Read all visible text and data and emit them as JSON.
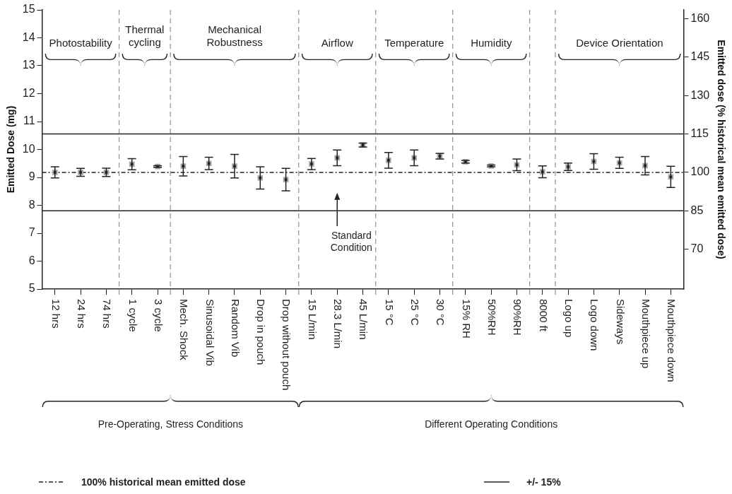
{
  "chart_data": {
    "type": "scatter",
    "ylabel": "Emitted Dose (mg)",
    "y2label": "Emitted dose (% historical mean emitted dose)",
    "categories": [
      "12 hrs",
      "24 hrs",
      "74 hrs",
      "1 cycle",
      "3 cycle",
      "Mech. Shock",
      "Sinusoidal Vib",
      "Random Vib",
      "Drop in pouch",
      "Drop without pouch",
      "15 L/min",
      "28.3 L/min",
      "45 L/min",
      "15 °C",
      "25 °C",
      "30 °C",
      "15% RH",
      "50%RH",
      "90%RH",
      "8000 ft",
      "Logo up",
      "Logo down",
      "Sideways",
      "Mouthpiece up",
      "Mouthpiece down"
    ],
    "series": [
      {
        "color": "#222222",
        "values": [
          9.18,
          9.18,
          9.18,
          9.47,
          9.39,
          9.4,
          9.5,
          9.4,
          8.98,
          8.92,
          9.48,
          9.7,
          10.16,
          9.61,
          9.7,
          9.76,
          9.56,
          9.41,
          9.45,
          9.2,
          9.38,
          9.57,
          9.52,
          9.42,
          9.02
        ],
        "errors": [
          0.2,
          0.14,
          0.15,
          0.2,
          0.03,
          0.35,
          0.22,
          0.42,
          0.4,
          0.4,
          0.2,
          0.28,
          0.07,
          0.28,
          0.28,
          0.1,
          0.05,
          0.03,
          0.21,
          0.21,
          0.13,
          0.28,
          0.2,
          0.33,
          0.38
        ]
      }
    ],
    "marker": "square",
    "ylim": [
      5,
      15
    ],
    "yticks": [
      5,
      6,
      7,
      8,
      9,
      10,
      11,
      12,
      13,
      14,
      15
    ],
    "y2lim": [
      54.5,
      163.4
    ],
    "y2ticks": [
      70,
      85,
      100,
      115,
      130,
      145,
      160
    ],
    "ref_lines": [
      {
        "axis": "y2",
        "value": 100,
        "line_style": "dashdot",
        "color": "#222222"
      },
      {
        "axis": "y2",
        "value": 115,
        "line_style": "solid",
        "color": "#222222"
      },
      {
        "axis": "y2",
        "value": 85,
        "line_style": "solid",
        "color": "#222222"
      }
    ],
    "annotations": [
      "Photostability",
      "Thermal\ncycling",
      "Mechanical\nRobustness",
      "Airflow",
      "Temperature",
      "Humidity",
      "Device Orientation",
      "Pre-Operating, Stress Conditions",
      "Different Operating Conditions",
      "Standard\nCondition",
      "100% historical mean emitted dose",
      "+/- 15%"
    ]
  }
}
